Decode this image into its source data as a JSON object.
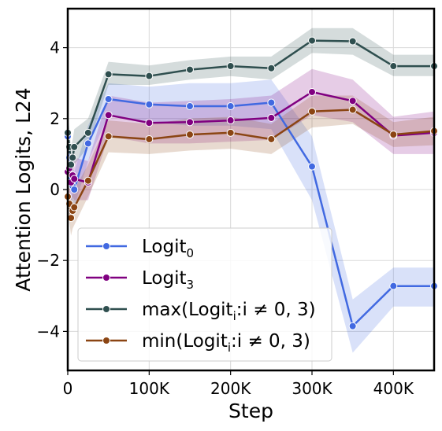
{
  "chart_data": {
    "type": "line",
    "xlabel": "Step",
    "ylabel": "Attention Logits, L24",
    "xlim": [
      0,
      450000
    ],
    "ylim": [
      -5.1,
      5.1
    ],
    "x_ticks": [
      0,
      100000,
      200000,
      300000,
      400000
    ],
    "x_tick_labels": [
      "0",
      "100K",
      "200K",
      "300K",
      "400K"
    ],
    "y_ticks": [
      -4,
      -2,
      0,
      2,
      4
    ],
    "y_tick_labels": [
      "−4",
      "−2",
      "0",
      "2",
      "4"
    ],
    "grid": true,
    "legend_position": "lower-left",
    "series": [
      {
        "name_main": "Logit",
        "name_sub": "0",
        "name_tail": "",
        "color": "#4169e1",
        "x": [
          0,
          2000,
          4000,
          6000,
          8000,
          25000,
          50000,
          100000,
          150000,
          200000,
          250000,
          300000,
          350000,
          400000,
          450000
        ],
        "y": [
          1.5,
          0.9,
          0.3,
          0.1,
          0.0,
          1.3,
          2.55,
          2.4,
          2.35,
          2.35,
          2.45,
          0.65,
          -3.85,
          -2.72,
          -2.72
        ],
        "lower": [
          0.8,
          0.3,
          -0.3,
          -0.4,
          -0.5,
          0.8,
          2.1,
          1.9,
          1.8,
          1.8,
          1.7,
          -0.3,
          -4.6,
          -3.3,
          -3.3
        ],
        "upper": [
          2.2,
          1.5,
          0.9,
          0.6,
          0.5,
          1.8,
          3.0,
          2.9,
          3.0,
          3.0,
          3.1,
          1.5,
          -3.1,
          -2.2,
          -2.2
        ]
      },
      {
        "name_main": "Logit",
        "name_sub": "3",
        "name_tail": "",
        "color": "#800080",
        "x": [
          0,
          2000,
          4000,
          6000,
          8000,
          25000,
          50000,
          100000,
          150000,
          200000,
          250000,
          300000,
          350000,
          400000,
          450000
        ],
        "y": [
          0.5,
          0.6,
          0.2,
          0.4,
          0.3,
          0.2,
          2.1,
          1.88,
          1.9,
          1.95,
          2.02,
          2.75,
          2.5,
          1.52,
          1.6
        ],
        "lower": [
          -0.2,
          -0.1,
          -0.4,
          -0.2,
          -0.3,
          -0.3,
          1.5,
          1.3,
          1.3,
          1.35,
          1.4,
          2.1,
          1.9,
          1.0,
          1.0
        ],
        "upper": [
          1.2,
          1.3,
          0.8,
          1.0,
          0.9,
          0.8,
          2.65,
          2.45,
          2.5,
          2.55,
          2.65,
          3.4,
          3.1,
          2.05,
          2.2
        ]
      },
      {
        "name_main": "max(Logit",
        "name_sub": "i",
        "name_tail": ":i ≠ 0, 3)",
        "color": "#2f4f4f",
        "x": [
          0,
          2000,
          4000,
          6000,
          8000,
          25000,
          50000,
          100000,
          150000,
          200000,
          250000,
          300000,
          350000,
          400000,
          450000
        ],
        "y": [
          1.6,
          1.2,
          0.7,
          0.9,
          1.2,
          1.6,
          3.25,
          3.2,
          3.38,
          3.48,
          3.42,
          4.2,
          4.18,
          3.48,
          3.48
        ],
        "lower": [
          1.1,
          0.7,
          0.2,
          0.4,
          0.7,
          1.2,
          2.95,
          2.95,
          3.1,
          3.2,
          3.1,
          3.85,
          3.8,
          3.2,
          3.2
        ],
        "upper": [
          2.1,
          1.7,
          1.2,
          1.4,
          1.7,
          2.0,
          3.6,
          3.5,
          3.65,
          3.75,
          3.75,
          4.55,
          4.55,
          3.8,
          3.8
        ]
      },
      {
        "name_main": "min(Logit",
        "name_sub": "i",
        "name_tail": ":i ≠ 0, 3)",
        "color": "#8b4513",
        "x": [
          0,
          2000,
          4000,
          6000,
          8000,
          25000,
          50000,
          100000,
          150000,
          200000,
          250000,
          300000,
          350000,
          400000,
          450000
        ],
        "y": [
          -0.2,
          -0.4,
          -0.8,
          -0.6,
          -0.5,
          0.25,
          1.5,
          1.42,
          1.55,
          1.6,
          1.42,
          2.2,
          2.25,
          1.55,
          1.65
        ],
        "lower": [
          -0.7,
          -0.9,
          -1.3,
          -1.1,
          -1.0,
          -0.2,
          1.05,
          1.0,
          1.1,
          1.15,
          1.0,
          1.75,
          1.85,
          1.2,
          1.25
        ],
        "upper": [
          0.3,
          0.1,
          -0.3,
          -0.1,
          0.0,
          0.7,
          1.95,
          1.85,
          2.0,
          2.05,
          1.85,
          2.65,
          2.65,
          1.9,
          2.05
        ]
      }
    ]
  }
}
